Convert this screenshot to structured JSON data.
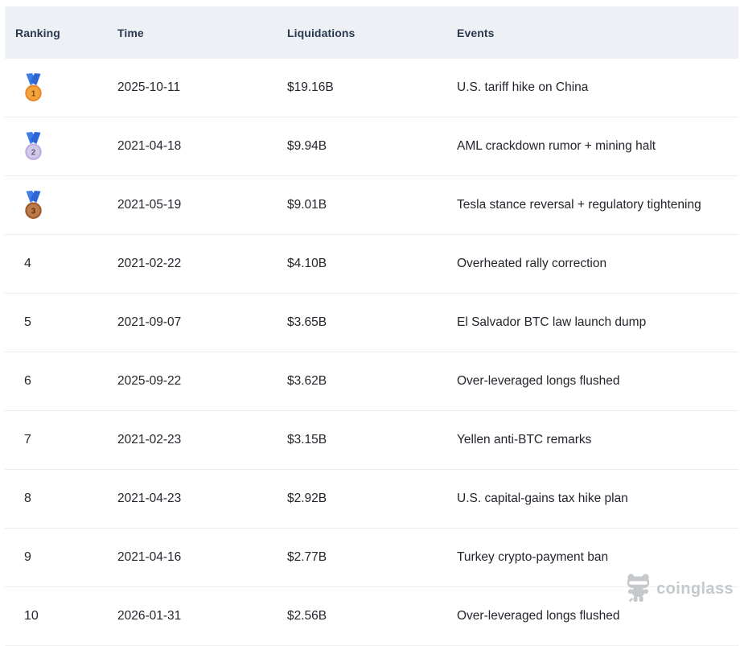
{
  "table": {
    "columns": [
      {
        "id": "ranking",
        "label": "Ranking"
      },
      {
        "id": "time",
        "label": "Time"
      },
      {
        "id": "liquidations",
        "label": "Liquidations"
      },
      {
        "id": "events",
        "label": "Events"
      }
    ],
    "rows": [
      {
        "ranking": "1",
        "medal": "gold",
        "time": "2025-10-11",
        "liquidations": "$19.16B",
        "events": "U.S. tariff hike on China"
      },
      {
        "ranking": "2",
        "medal": "silver",
        "time": "2021-04-18",
        "liquidations": "$9.94B",
        "events": "AML crackdown rumor + mining halt"
      },
      {
        "ranking": "3",
        "medal": "bronze",
        "time": "2021-05-19",
        "liquidations": "$9.01B",
        "events": "Tesla stance reversal + regulatory tightening"
      },
      {
        "ranking": "4",
        "medal": null,
        "time": "2021-02-22",
        "liquidations": "$4.10B",
        "events": "Overheated rally correction"
      },
      {
        "ranking": "5",
        "medal": null,
        "time": "2021-09-07",
        "liquidations": "$3.65B",
        "events": "El Salvador BTC law launch dump"
      },
      {
        "ranking": "6",
        "medal": null,
        "time": "2025-09-22",
        "liquidations": "$3.62B",
        "events": "Over-leveraged longs flushed"
      },
      {
        "ranking": "7",
        "medal": null,
        "time": "2021-02-23",
        "liquidations": "$3.15B",
        "events": "Yellen anti-BTC remarks"
      },
      {
        "ranking": "8",
        "medal": null,
        "time": "2021-04-23",
        "liquidations": "$2.92B",
        "events": "U.S. capital-gains tax hike plan"
      },
      {
        "ranking": "9",
        "medal": null,
        "time": "2021-04-16",
        "liquidations": "$2.77B",
        "events": "Turkey crypto-payment ban"
      },
      {
        "ranking": "10",
        "medal": null,
        "time": "2026-01-31",
        "liquidations": "$2.56B",
        "events": "Over-leveraged longs flushed"
      }
    ]
  },
  "watermark": {
    "brand": "coinglass",
    "icon": "coinglass-mascot-icon"
  },
  "colors": {
    "header_bg": "#edf0f4",
    "header_text": "#2b3950",
    "body_text": "#23262c",
    "divider": "#ebecee",
    "watermark": "#c6c9cc",
    "ribbon_left": "#3e7de8",
    "ribbon_right": "#2e66d6",
    "medals": {
      "gold": {
        "fill": "#f5a43c",
        "rim": "#e8872e",
        "number": "#7c4a12"
      },
      "silver": {
        "fill": "#d2c8e8",
        "rim": "#bcaede",
        "number": "#665f7d"
      },
      "bronze": {
        "fill": "#bd7a4b",
        "rim": "#9d5a2e",
        "number": "#5b3110"
      }
    }
  }
}
